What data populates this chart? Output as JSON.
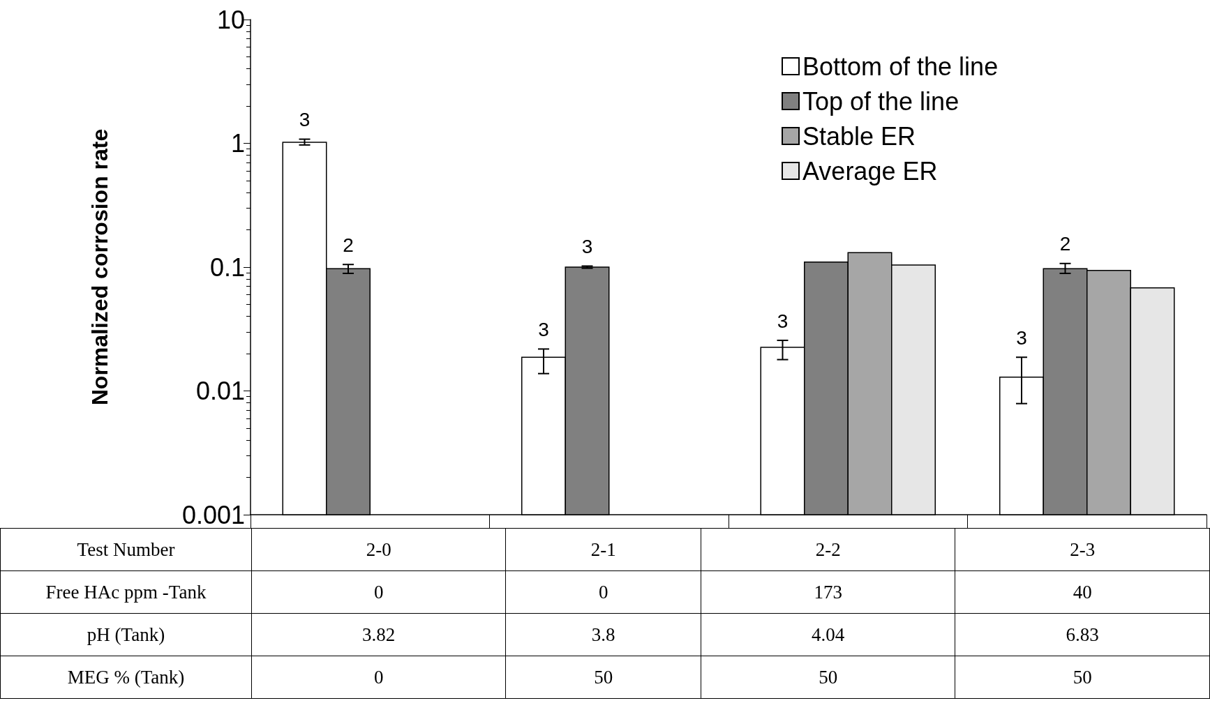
{
  "chart_data": {
    "type": "bar",
    "ylabel": "Normalized corrosion rate",
    "xlabel": "Test Number",
    "categories": [
      "2-0",
      "2-1",
      "2-2",
      "2-3"
    ],
    "series": [
      {
        "name": "Bottom of the line",
        "color": "#ffffff",
        "values": [
          1.02,
          0.0187,
          0.0225,
          0.0129
        ],
        "errors": [
          [
            0.97,
            1.08
          ],
          [
            0.0138,
            0.0218
          ],
          [
            0.0179,
            0.0256
          ],
          [
            0.0079,
            0.0187
          ]
        ]
      },
      {
        "name": "Top of the line",
        "color": "#808080",
        "values": [
          0.097,
          0.1,
          0.11,
          0.097
        ],
        "errors": [
          [
            0.089,
            0.105
          ],
          [
            0.098,
            0.102
          ],
          null,
          [
            0.089,
            0.107
          ]
        ]
      },
      {
        "name": "Stable ER",
        "color": "#a6a6a6",
        "values": [
          null,
          null,
          0.131,
          0.094
        ]
      },
      {
        "name": "Average ER",
        "color": "#e6e6e6",
        "values": [
          null,
          null,
          0.104,
          0.068
        ]
      }
    ],
    "ylim": [
      0.001,
      10
    ],
    "yticks": [
      0.001,
      0.01,
      0.1,
      1,
      10
    ],
    "log": true,
    "grid": false,
    "legend": "top right",
    "annotations": [
      "Free HAc ppm -Tank",
      "0",
      "0",
      "173",
      "40",
      "pH (Tank)",
      "3.82",
      "3.8",
      "4.04",
      "6.83",
      "MEG % (Tank)",
      "0",
      "50",
      "50",
      "50",
      "3",
      "2",
      "3",
      "3",
      "3",
      "3",
      "2"
    ]
  }
}
